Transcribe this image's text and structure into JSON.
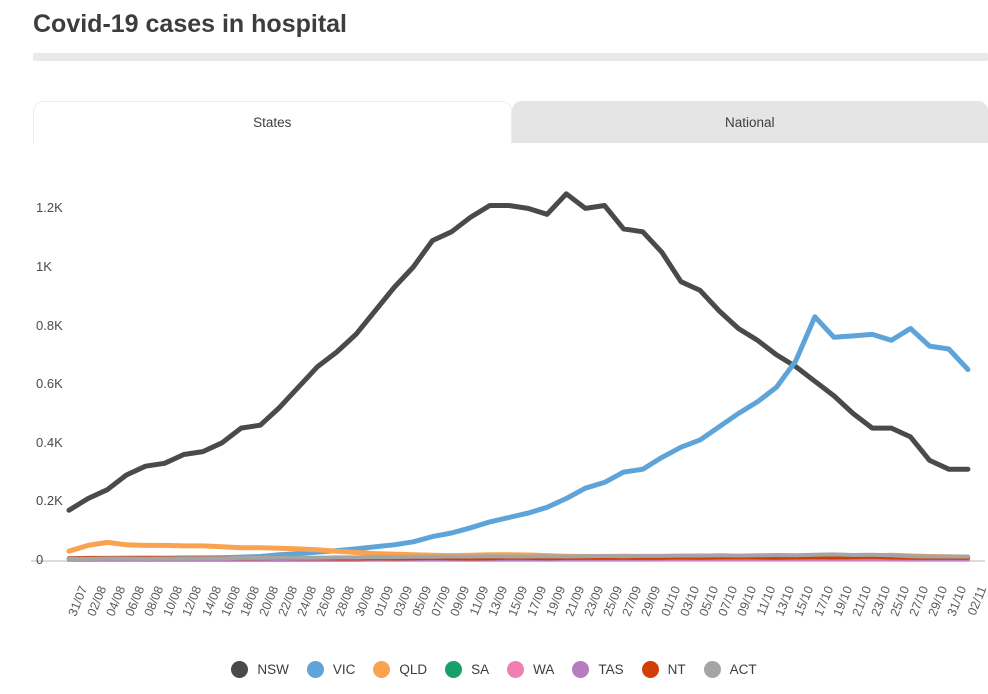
{
  "header": {
    "title": "Covid-19 cases in hospital"
  },
  "tabs": {
    "states_label": "States",
    "national_label": "National",
    "active_tab": "States"
  },
  "chart_data": {
    "type": "line",
    "title": "Covid-19 cases in hospital",
    "legend_position": "bottom",
    "grid": false,
    "ylim": [
      0,
      1.3
    ],
    "units": "thousands of hospitalised cases (K)",
    "y_ticks": [
      {
        "label": "0",
        "value": 0
      },
      {
        "label": "0.2K",
        "value": 0.2
      },
      {
        "label": "0.4K",
        "value": 0.4
      },
      {
        "label": "0.6K",
        "value": 0.6
      },
      {
        "label": "0.8K",
        "value": 0.8
      },
      {
        "label": "1K",
        "value": 1.0
      },
      {
        "label": "1.2K",
        "value": 1.2
      }
    ],
    "x": [
      "31/07",
      "02/08",
      "04/08",
      "06/08",
      "08/08",
      "10/08",
      "12/08",
      "14/08",
      "16/08",
      "18/08",
      "20/08",
      "22/08",
      "24/08",
      "26/08",
      "28/08",
      "30/08",
      "01/09",
      "03/09",
      "05/09",
      "07/09",
      "09/09",
      "11/09",
      "13/09",
      "15/09",
      "17/09",
      "19/09",
      "21/09",
      "23/09",
      "25/09",
      "27/09",
      "29/09",
      "01/10",
      "03/10",
      "05/10",
      "07/10",
      "09/10",
      "11/10",
      "13/10",
      "15/10",
      "17/10",
      "19/10",
      "21/10",
      "23/10",
      "25/10",
      "27/10",
      "29/10",
      "31/10",
      "02/11"
    ],
    "series": [
      {
        "name": "NSW",
        "color": "#4a4a4a",
        "values": [
          0.17,
          0.21,
          0.24,
          0.29,
          0.32,
          0.33,
          0.36,
          0.37,
          0.4,
          0.45,
          0.46,
          0.52,
          0.59,
          0.66,
          0.71,
          0.77,
          0.85,
          0.93,
          1.0,
          1.09,
          1.12,
          1.17,
          1.21,
          1.21,
          1.2,
          1.18,
          1.25,
          1.2,
          1.21,
          1.13,
          1.12,
          1.05,
          0.95,
          0.92,
          0.85,
          0.79,
          0.75,
          0.7,
          0.66,
          0.61,
          0.56,
          0.5,
          0.45,
          0.45,
          0.42,
          0.34,
          0.31,
          0.31
        ]
      },
      {
        "name": "VIC",
        "color": "#5ea4d9",
        "values": [
          0.004,
          0.004,
          0.005,
          0.005,
          0.006,
          0.006,
          0.007,
          0.007,
          0.008,
          0.01,
          0.012,
          0.018,
          0.022,
          0.027,
          0.032,
          0.038,
          0.045,
          0.052,
          0.062,
          0.08,
          0.092,
          0.11,
          0.13,
          0.145,
          0.16,
          0.18,
          0.21,
          0.245,
          0.265,
          0.3,
          0.31,
          0.35,
          0.385,
          0.41,
          0.455,
          0.5,
          0.54,
          0.59,
          0.68,
          0.83,
          0.76,
          0.765,
          0.77,
          0.75,
          0.79,
          0.73,
          0.72,
          0.65
        ]
      },
      {
        "name": "QLD",
        "color": "#f9a350",
        "values": [
          0.03,
          0.05,
          0.06,
          0.052,
          0.05,
          0.05,
          0.048,
          0.048,
          0.045,
          0.042,
          0.042,
          0.04,
          0.038,
          0.035,
          0.03,
          0.026,
          0.022,
          0.02,
          0.018,
          0.016,
          0.015,
          0.016,
          0.018,
          0.018,
          0.017,
          0.015,
          0.013,
          0.012,
          0.012,
          0.013,
          0.012,
          0.012,
          0.013,
          0.014,
          0.013,
          0.012,
          0.012,
          0.013,
          0.012,
          0.013,
          0.014,
          0.013,
          0.014,
          0.016,
          0.014,
          0.012,
          0.011,
          0.01
        ]
      },
      {
        "name": "SA",
        "color": "#16a06b",
        "values": [
          0.002,
          0.002,
          0.002,
          0.002,
          0.002,
          0.002,
          0.002,
          0.002,
          0.002,
          0.002,
          0.002,
          0.002,
          0.002,
          0.002,
          0.002,
          0.002,
          0.002,
          0.002,
          0.002,
          0.002,
          0.002,
          0.002,
          0.002,
          0.002,
          0.002,
          0.002,
          0.002,
          0.002,
          0.002,
          0.002,
          0.002,
          0.003,
          0.003,
          0.003,
          0.003,
          0.003,
          0.003,
          0.003,
          0.003,
          0.003,
          0.003,
          0.003,
          0.003,
          0.003,
          0.002,
          0.002,
          0.002,
          0.002
        ]
      },
      {
        "name": "WA",
        "color": "#f07eb3",
        "values": [
          0.002,
          0.002,
          0.002,
          0.002,
          0.002,
          0.002,
          0.002,
          0.002,
          0.002,
          0.002,
          0.002,
          0.002,
          0.002,
          0.002,
          0.002,
          0.002,
          0.002,
          0.002,
          0.002,
          0.002,
          0.002,
          0.002,
          0.002,
          0.002,
          0.002,
          0.002,
          0.002,
          0.002,
          0.002,
          0.002,
          0.002,
          0.002,
          0.002,
          0.002,
          0.002,
          0.002,
          0.002,
          0.002,
          0.002,
          0.002,
          0.002,
          0.002,
          0.002,
          0.002,
          0.002,
          0.002,
          0.002,
          0.002
        ]
      },
      {
        "name": "TAS",
        "color": "#b57cc0",
        "values": [
          0.001,
          0.001,
          0.001,
          0.001,
          0.001,
          0.001,
          0.001,
          0.001,
          0.001,
          0.001,
          0.001,
          0.001,
          0.001,
          0.001,
          0.001,
          0.001,
          0.002,
          0.002,
          0.002,
          0.002,
          0.002,
          0.002,
          0.002,
          0.002,
          0.002,
          0.002,
          0.004,
          0.004,
          0.004,
          0.004,
          0.004,
          0.005,
          0.005,
          0.005,
          0.005,
          0.005,
          0.005,
          0.005,
          0.005,
          0.005,
          0.005,
          0.005,
          0.005,
          0.005,
          0.005,
          0.004,
          0.004,
          0.004
        ]
      },
      {
        "name": "NT",
        "color": "#d23e08",
        "values": [
          0.006,
          0.007,
          0.007,
          0.008,
          0.007,
          0.007,
          0.006,
          0.007,
          0.007,
          0.006,
          0.006,
          0.007,
          0.006,
          0.006,
          0.005,
          0.005,
          0.006,
          0.005,
          0.006,
          0.007,
          0.006,
          0.005,
          0.006,
          0.008,
          0.007,
          0.006,
          0.007,
          0.008,
          0.007,
          0.008,
          0.007,
          0.008,
          0.009,
          0.008,
          0.009,
          0.01,
          0.009,
          0.008,
          0.009,
          0.01,
          0.009,
          0.01,
          0.011,
          0.009,
          0.008,
          0.008,
          0.008,
          0.008
        ]
      },
      {
        "name": "ACT",
        "color": "#a5a5a5",
        "values": [
          0.004,
          0.004,
          0.005,
          0.005,
          0.004,
          0.005,
          0.005,
          0.006,
          0.006,
          0.007,
          0.007,
          0.008,
          0.008,
          0.008,
          0.009,
          0.009,
          0.01,
          0.01,
          0.011,
          0.011,
          0.012,
          0.012,
          0.013,
          0.012,
          0.012,
          0.013,
          0.012,
          0.013,
          0.014,
          0.013,
          0.014,
          0.014,
          0.015,
          0.015,
          0.016,
          0.015,
          0.016,
          0.017,
          0.016,
          0.018,
          0.019,
          0.017,
          0.018,
          0.016,
          0.013,
          0.012,
          0.012,
          0.012
        ]
      }
    ]
  }
}
